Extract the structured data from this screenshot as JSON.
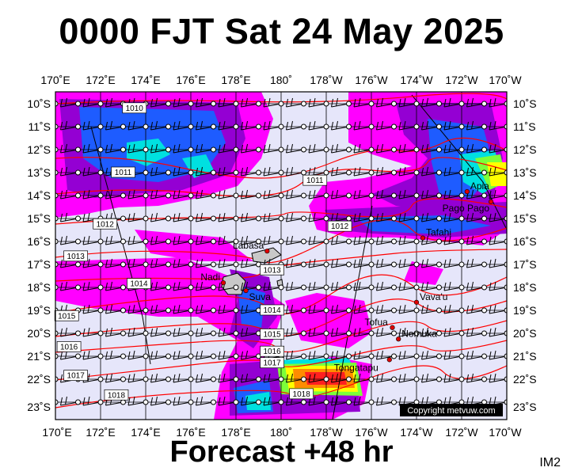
{
  "title": "0000 FJT Sat 24 May 2025",
  "footer": "Forecast +48 hr",
  "image_tag": "IM2",
  "copyright": "Copyright metvuw.com",
  "longitude_labels": [
    "170˚E",
    "172˚E",
    "174˚E",
    "176˚E",
    "178˚E",
    "180˚",
    "178˚W",
    "176˚W",
    "174˚W",
    "172˚W",
    "170˚W"
  ],
  "latitude_labels": [
    "10˚S",
    "11˚S",
    "12˚S",
    "13˚S",
    "14˚S",
    "15˚S",
    "16˚S",
    "17˚S",
    "18˚S",
    "19˚S",
    "20˚S",
    "21˚S",
    "22˚S",
    "23˚S"
  ],
  "places": [
    {
      "name": "Apia",
      "lon": -171.76,
      "lat": -13.83
    },
    {
      "name": "Pago Pago",
      "lon": -170.7,
      "lat": -14.27
    },
    {
      "name": "Tafahi",
      "lon": -173.72,
      "lat": -15.85
    },
    {
      "name": "Labasa",
      "lon": 179.38,
      "lat": -16.42
    },
    {
      "name": "Nadi",
      "lon": 177.44,
      "lat": -17.8
    },
    {
      "name": "Suva",
      "lon": 178.44,
      "lat": -18.14
    },
    {
      "name": "Vava'u",
      "lon": -174.0,
      "lat": -18.65
    },
    {
      "name": "Tofua",
      "lon": -175.07,
      "lat": -19.75
    },
    {
      "name": "Nomuka",
      "lon": -174.8,
      "lat": -20.25
    },
    {
      "name": "Tongatapu",
      "lon": -175.2,
      "lat": -21.15
    }
  ],
  "isobars": [
    {
      "label": "1010",
      "lon": 173.5,
      "lat": -10.2
    },
    {
      "label": "1011",
      "lon": 173.0,
      "lat": -13.0
    },
    {
      "label": "1011",
      "lon": -178.5,
      "lat": -13.35
    },
    {
      "label": "1012",
      "lon": 172.2,
      "lat": -15.25
    },
    {
      "label": "1012",
      "lon": -177.4,
      "lat": -15.35
    },
    {
      "label": "1013",
      "lon": 170.9,
      "lat": -16.65
    },
    {
      "label": "1013",
      "lon": 179.6,
      "lat": -17.25
    },
    {
      "label": "1014",
      "lon": 173.7,
      "lat": -17.85
    },
    {
      "label": "1014",
      "lon": 179.6,
      "lat": -19.0
    },
    {
      "label": "1015",
      "lon": 170.5,
      "lat": -19.25
    },
    {
      "label": "1015",
      "lon": 179.6,
      "lat": -20.05
    },
    {
      "label": "1016",
      "lon": 170.6,
      "lat": -20.6
    },
    {
      "label": "1016",
      "lon": 179.6,
      "lat": -20.8
    },
    {
      "label": "1017",
      "lon": 170.9,
      "lat": -21.85
    },
    {
      "label": "1017",
      "lon": 179.6,
      "lat": -21.3
    },
    {
      "label": "1018",
      "lon": 172.7,
      "lat": -22.7
    },
    {
      "label": "1018",
      "lon": -179.1,
      "lat": -22.65
    }
  ],
  "colors": {
    "background_lavender": "#e6e6fa",
    "precip_magenta": "#ff00ff",
    "precip_purple": "#9400d3",
    "precip_blue": "#1e5cff",
    "precip_cyan": "#00e0e0",
    "precip_green": "#7cff3a",
    "precip_yellow": "#ffff00",
    "precip_orange": "#ff8c00",
    "precip_red": "#ff2020",
    "isobar": "#ff0000",
    "place_marker": "#e00000"
  }
}
